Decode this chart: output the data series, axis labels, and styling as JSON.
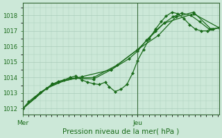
{
  "bg_color": "#cce8d8",
  "grid_color": "#aaccbb",
  "line_color": "#1a6b1a",
  "spine_color": "#336633",
  "xtick_labels": [
    "Mer",
    "Jeu"
  ],
  "xtick_positions": [
    0.0,
    0.585
  ],
  "xlabel_text": "Pression niveau de la mer( hPa )",
  "ylim": [
    1011.6,
    1018.8
  ],
  "yticks": [
    1012,
    1013,
    1014,
    1015,
    1016,
    1017,
    1018
  ],
  "xlim": [
    0.0,
    1.0
  ],
  "vline_x": 0.585,
  "line1_x": [
    0.0,
    0.03,
    0.06,
    0.09,
    0.12,
    0.15,
    0.18,
    0.21,
    0.24,
    0.27,
    0.3,
    0.33,
    0.36,
    0.39,
    0.42,
    0.44,
    0.47,
    0.5,
    0.53,
    0.56,
    0.585,
    0.615,
    0.645,
    0.675,
    0.705,
    0.73,
    0.76,
    0.79,
    0.82,
    0.85,
    0.88,
    0.91,
    0.94,
    0.97,
    1.0
  ],
  "line1_y": [
    1012.0,
    1012.45,
    1012.75,
    1013.05,
    1013.3,
    1013.55,
    1013.75,
    1013.85,
    1014.0,
    1014.1,
    1013.85,
    1013.7,
    1013.6,
    1013.55,
    1013.7,
    1013.4,
    1013.1,
    1013.25,
    1013.55,
    1014.3,
    1015.1,
    1015.8,
    1016.5,
    1017.1,
    1017.6,
    1017.95,
    1018.2,
    1018.1,
    1017.8,
    1017.4,
    1017.1,
    1017.0,
    1017.0,
    1017.1,
    1017.2
  ],
  "line2_x": [
    0.0,
    0.09,
    0.18,
    0.27,
    0.36,
    0.45,
    0.54,
    0.585,
    0.63,
    0.675,
    0.72,
    0.765,
    0.81,
    0.855,
    0.9,
    0.95,
    1.0
  ],
  "line2_y": [
    1012.0,
    1013.05,
    1013.7,
    1013.95,
    1013.9,
    1014.5,
    1015.2,
    1015.7,
    1016.4,
    1017.0,
    1017.5,
    1017.9,
    1018.15,
    1018.0,
    1017.6,
    1017.1,
    1017.2
  ],
  "line3_x": [
    0.0,
    0.12,
    0.24,
    0.36,
    0.48,
    0.585,
    0.69,
    0.78,
    0.87,
    0.96,
    1.0
  ],
  "line3_y": [
    1012.0,
    1013.3,
    1013.95,
    1014.0,
    1014.8,
    1015.8,
    1016.7,
    1017.9,
    1018.2,
    1017.1,
    1017.2
  ],
  "line4_x": [
    0.0,
    0.15,
    0.3,
    0.45,
    0.585,
    0.72,
    0.87,
    1.0
  ],
  "line4_y": [
    1012.0,
    1013.6,
    1014.05,
    1014.5,
    1015.8,
    1017.5,
    1018.1,
    1017.2
  ],
  "marker": "D",
  "markersize": 2.2,
  "linewidth": 0.9,
  "ytick_fontsize": 6,
  "xtick_fontsize": 6.5,
  "xlabel_fontsize": 7.5
}
